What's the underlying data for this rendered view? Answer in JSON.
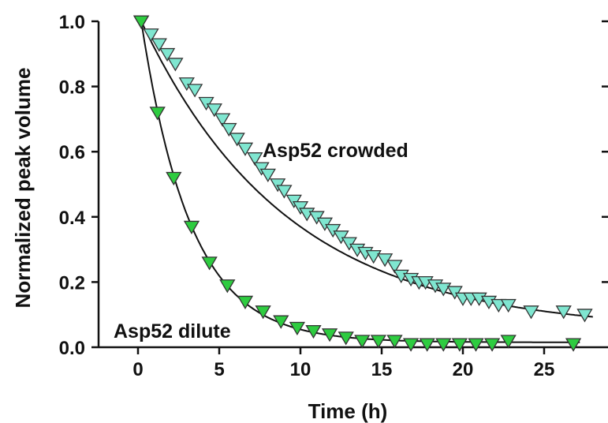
{
  "chart_data": {
    "type": "scatter",
    "xlabel": "Time (h)",
    "ylabel": "Normalized peak volume",
    "xlim": [
      -2,
      28
    ],
    "ylim": [
      0,
      1.0
    ],
    "x_ticks": [
      "0",
      "5",
      "10",
      "15",
      "20",
      "25"
    ],
    "y_ticks": [
      "0.0",
      "0.2",
      "0.4",
      "0.6",
      "0.8",
      "1.0"
    ],
    "grid": false,
    "series": [
      {
        "name": "Asp52 crowded",
        "marker": "triangle-down",
        "color": "#7fe6d0",
        "fit": "exponential decay",
        "points": [
          [
            0.2,
            1.0
          ],
          [
            0.8,
            0.96
          ],
          [
            1.3,
            0.93
          ],
          [
            1.8,
            0.9
          ],
          [
            2.3,
            0.87
          ],
          [
            3.0,
            0.81
          ],
          [
            3.5,
            0.79
          ],
          [
            4.2,
            0.75
          ],
          [
            4.7,
            0.73
          ],
          [
            5.2,
            0.7
          ],
          [
            5.6,
            0.67
          ],
          [
            6.1,
            0.64
          ],
          [
            6.6,
            0.61
          ],
          [
            7.2,
            0.58
          ],
          [
            7.6,
            0.55
          ],
          [
            8.0,
            0.53
          ],
          [
            8.6,
            0.5
          ],
          [
            9.0,
            0.48
          ],
          [
            9.6,
            0.45
          ],
          [
            10.0,
            0.43
          ],
          [
            10.4,
            0.41
          ],
          [
            11.0,
            0.4
          ],
          [
            11.5,
            0.38
          ],
          [
            12.0,
            0.36
          ],
          [
            12.5,
            0.34
          ],
          [
            13.0,
            0.32
          ],
          [
            13.5,
            0.3
          ],
          [
            14.0,
            0.29
          ],
          [
            14.5,
            0.28
          ],
          [
            15.2,
            0.27
          ],
          [
            15.8,
            0.25
          ],
          [
            16.2,
            0.22
          ],
          [
            16.8,
            0.21
          ],
          [
            17.3,
            0.2
          ],
          [
            17.7,
            0.2
          ],
          [
            18.3,
            0.19
          ],
          [
            18.8,
            0.18
          ],
          [
            19.5,
            0.17
          ],
          [
            20.0,
            0.15
          ],
          [
            20.5,
            0.15
          ],
          [
            21.0,
            0.15
          ],
          [
            21.6,
            0.14
          ],
          [
            22.2,
            0.13
          ],
          [
            22.8,
            0.13
          ],
          [
            24.2,
            0.11
          ],
          [
            26.2,
            0.11
          ],
          [
            27.5,
            0.1
          ]
        ]
      },
      {
        "name": "Asp52 dilute",
        "marker": "triangle-down",
        "color": "#2ecc40",
        "fit": "exponential decay",
        "points": [
          [
            0.2,
            1.0
          ],
          [
            1.2,
            0.72
          ],
          [
            2.2,
            0.52
          ],
          [
            3.3,
            0.37
          ],
          [
            4.4,
            0.26
          ],
          [
            5.5,
            0.19
          ],
          [
            6.6,
            0.14
          ],
          [
            7.7,
            0.11
          ],
          [
            8.8,
            0.08
          ],
          [
            9.8,
            0.06
          ],
          [
            10.8,
            0.05
          ],
          [
            11.8,
            0.04
          ],
          [
            12.8,
            0.03
          ],
          [
            13.8,
            0.02
          ],
          [
            14.8,
            0.02
          ],
          [
            15.8,
            0.02
          ],
          [
            16.8,
            0.01
          ],
          [
            17.8,
            0.01
          ],
          [
            18.8,
            0.01
          ],
          [
            19.8,
            0.01
          ],
          [
            20.8,
            0.01
          ],
          [
            21.8,
            0.01
          ],
          [
            22.8,
            0.02
          ],
          [
            26.8,
            0.01
          ]
        ]
      }
    ],
    "annotations": [
      "Asp52 crowded",
      "Asp52 dilute"
    ]
  }
}
